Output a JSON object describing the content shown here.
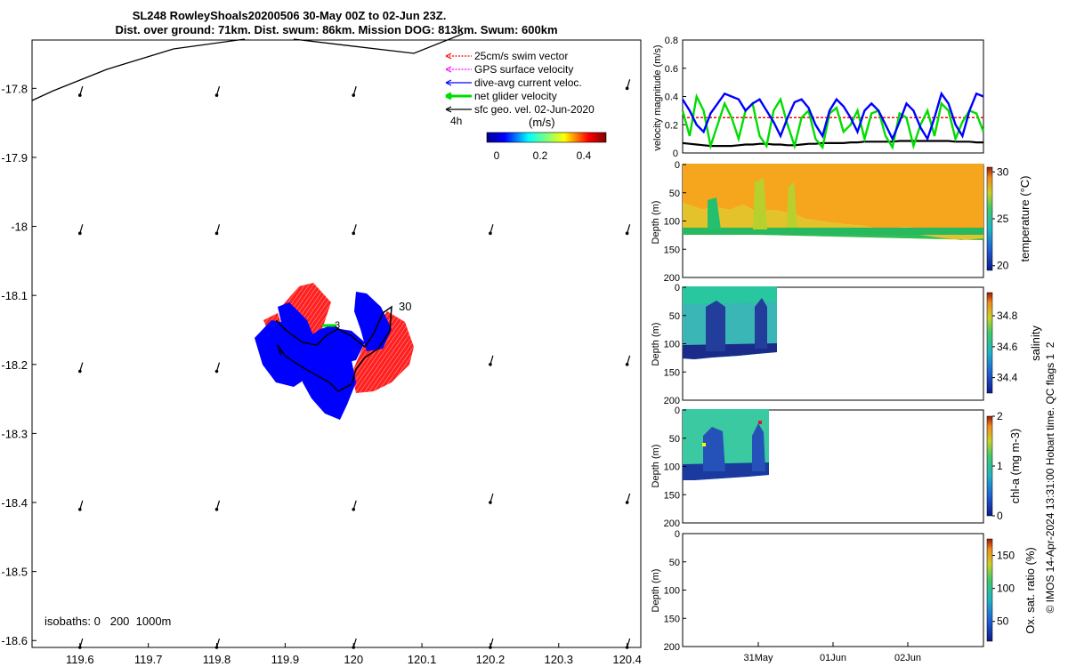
{
  "title": {
    "line1": "SL248 RowleyShoals20200506 30-May 00Z to 02-Jun 23Z.",
    "line2": "Dist. over ground: 71km. Dist. swum: 86km. Mission DOG: 813km. Swum: 600km"
  },
  "map": {
    "x_ticks": [
      "119.6",
      "119.7",
      "119.8",
      "119.9",
      "120",
      "120.1",
      "120.2",
      "120.3",
      "120.4"
    ],
    "y_ticks": [
      "-17.8",
      "-17.9",
      "-18",
      "-18.1",
      "-18.2",
      "-18.3",
      "-18.4",
      "-18.5",
      "-18.6"
    ],
    "isobaths_label": "isobaths: 0   200  1000m",
    "legend": [
      {
        "label": "25cm/s swim vector",
        "color": "#ff0000"
      },
      {
        "label": "GPS surface velocity",
        "color": "#ff00ff"
      },
      {
        "label": "dive-avg current veloc.",
        "color": "#0000ff"
      },
      {
        "label": "net glider velocity",
        "color": "#00dd00"
      },
      {
        "label": "sfc geo. vel. 02-Jun-2020",
        "color": "#000000"
      }
    ],
    "interval_label": "4h",
    "colorbar_title": "(m/s)",
    "colorbar_ticks": [
      "0",
      "0.2",
      "0.4"
    ],
    "track_labels": [
      "30",
      "3"
    ]
  },
  "panels": {
    "velocity": {
      "ylabel": "velocity magnitude (m/s)",
      "y_ticks": [
        "0",
        "0.2",
        "0.4",
        "0.6",
        "0.8"
      ]
    },
    "temperature": {
      "ylabel": "Depth (m)",
      "cbar_label": "temperature (°C)",
      "y_ticks": [
        "0",
        "50",
        "100",
        "150",
        "200"
      ],
      "cbar_ticks": [
        "30",
        "25",
        "20"
      ]
    },
    "salinity": {
      "ylabel": "Depth (m)",
      "cbar_label": "salinity",
      "y_ticks": [
        "0",
        "50",
        "100",
        "150",
        "200"
      ],
      "cbar_ticks": [
        "34.8",
        "34.6",
        "34.4"
      ]
    },
    "chla": {
      "ylabel": "Depth (m)",
      "cbar_label": "chl-a (mg m-3)",
      "y_ticks": [
        "0",
        "50",
        "100",
        "150",
        "200"
      ],
      "cbar_ticks": [
        "2",
        "1",
        "0"
      ]
    },
    "oxygen": {
      "ylabel": "Depth (m)",
      "cbar_label": "Ox. sat. ratio (%)",
      "y_ticks": [
        "0",
        "50",
        "100",
        "150",
        "200"
      ],
      "cbar_ticks": [
        "150",
        "100",
        "50"
      ]
    },
    "x_ticks": [
      "31May",
      "01Jun",
      "02Jun"
    ]
  },
  "side_note": "© IMOS 14-Apr-2024 13:31:00 Hobart time. QC flags 1  2",
  "chart_data": [
    {
      "type": "scatter",
      "title": "SL248 RowleyShoals20200506 30-May 00Z to 02-Jun 23Z.",
      "xlabel": "",
      "ylabel": "",
      "xlim": [
        119.53,
        120.42
      ],
      "ylim": [
        -18.61,
        -17.73
      ],
      "series": [
        {
          "name": "sfc geo. vel. 02-Jun-2020",
          "points": [
            {
              "x": 119.6,
              "y": -17.81
            },
            {
              "x": 119.8,
              "y": -17.81
            },
            {
              "x": 120.0,
              "y": -17.81
            },
            {
              "x": 120.4,
              "y": -17.8
            },
            {
              "x": 119.6,
              "y": -18.01
            },
            {
              "x": 119.8,
              "y": -18.01
            },
            {
              "x": 120.0,
              "y": -18.01
            },
            {
              "x": 120.2,
              "y": -18.01
            },
            {
              "x": 120.4,
              "y": -18.01
            },
            {
              "x": 119.6,
              "y": -18.21
            },
            {
              "x": 119.8,
              "y": -18.21
            },
            {
              "x": 120.2,
              "y": -18.2
            },
            {
              "x": 120.4,
              "y": -18.2
            },
            {
              "x": 119.6,
              "y": -18.41
            },
            {
              "x": 119.8,
              "y": -18.41
            },
            {
              "x": 120.0,
              "y": -18.41
            },
            {
              "x": 120.2,
              "y": -18.4
            },
            {
              "x": 120.4,
              "y": -18.4
            },
            {
              "x": 119.6,
              "y": -18.61
            },
            {
              "x": 119.8,
              "y": -18.61
            },
            {
              "x": 120.0,
              "y": -18.61
            },
            {
              "x": 120.2,
              "y": -18.61
            },
            {
              "x": 120.4,
              "y": -18.61
            }
          ]
        }
      ]
    },
    {
      "type": "line",
      "xlabel": "",
      "ylabel": "velocity magnitude (m/s)",
      "ylim": [
        0,
        0.8
      ],
      "x_ticks": [
        "31May",
        "01Jun",
        "02Jun"
      ],
      "series": [
        {
          "name": "dive-avg current veloc.",
          "color": "#0000ff",
          "values": [
            0.38,
            0.3,
            0.2,
            0.15,
            0.28,
            0.35,
            0.42,
            0.4,
            0.38,
            0.3,
            0.35,
            0.38,
            0.3,
            0.22,
            0.12,
            0.25,
            0.36,
            0.38,
            0.32,
            0.2,
            0.12,
            0.3,
            0.38,
            0.33,
            0.25,
            0.15,
            0.3,
            0.35,
            0.3,
            0.2,
            0.1,
            0.22,
            0.35,
            0.3,
            0.18,
            0.1,
            0.25,
            0.42,
            0.35,
            0.2,
            0.12,
            0.3,
            0.42,
            0.4
          ]
        },
        {
          "name": "net glider velocity",
          "color": "#00dd00",
          "values": [
            0.3,
            0.12,
            0.4,
            0.3,
            0.05,
            0.2,
            0.35,
            0.25,
            0.1,
            0.3,
            0.35,
            0.12,
            0.05,
            0.3,
            0.38,
            0.2,
            0.05,
            0.25,
            0.3,
            0.1,
            0.04,
            0.28,
            0.32,
            0.15,
            0.2,
            0.3,
            0.1,
            0.28,
            0.3,
            0.12,
            0.04,
            0.28,
            0.25,
            0.05,
            0.2,
            0.3,
            0.12,
            0.35,
            0.3,
            0.1,
            0.22,
            0.3,
            0.28,
            0.15
          ]
        },
        {
          "name": "25cm/s swim vector",
          "color": "#ff0000",
          "values": [
            0.25,
            0.25,
            0.25,
            0.25,
            0.25,
            0.25,
            0.25,
            0.25,
            0.25,
            0.25,
            0.25,
            0.25,
            0.25,
            0.25,
            0.25,
            0.25,
            0.25,
            0.25,
            0.25,
            0.25,
            0.25,
            0.25,
            0.25,
            0.25,
            0.25,
            0.25,
            0.25,
            0.25,
            0.25,
            0.25,
            0.25,
            0.25,
            0.25,
            0.25,
            0.25,
            0.25,
            0.25,
            0.25,
            0.25,
            0.25,
            0.25,
            0.25,
            0.25,
            0.25
          ]
        },
        {
          "name": "sfc geo. vel. 02-Jun-2020",
          "color": "#000000",
          "values": [
            0.07,
            0.065,
            0.06,
            0.055,
            0.05,
            0.05,
            0.05,
            0.05,
            0.055,
            0.06,
            0.06,
            0.065,
            0.065,
            0.06,
            0.06,
            0.055,
            0.055,
            0.06,
            0.065,
            0.065,
            0.07,
            0.07,
            0.07,
            0.07,
            0.075,
            0.075,
            0.08,
            0.08,
            0.08,
            0.08,
            0.08,
            0.085,
            0.085,
            0.085,
            0.085,
            0.085,
            0.085,
            0.085,
            0.085,
            0.08,
            0.08,
            0.08,
            0.075,
            0.075
          ]
        }
      ]
    },
    {
      "type": "heatmap",
      "ylabel": "Depth (m)",
      "cbar_label": "temperature (°C)",
      "ylim": [
        200,
        0
      ],
      "clim": [
        19.5,
        30.5
      ]
    },
    {
      "type": "heatmap",
      "ylabel": "Depth (m)",
      "cbar_label": "salinity",
      "ylim": [
        200,
        0
      ],
      "clim": [
        34.3,
        34.95
      ]
    },
    {
      "type": "heatmap",
      "ylabel": "Depth (m)",
      "cbar_label": "chl-a (mg m-3)",
      "ylim": [
        200,
        0
      ],
      "clim": [
        0,
        2
      ]
    },
    {
      "type": "heatmap",
      "ylabel": "Depth (m)",
      "cbar_label": "Ox. sat. ratio (%)",
      "ylim": [
        200,
        0
      ],
      "clim": [
        20,
        175
      ]
    }
  ]
}
